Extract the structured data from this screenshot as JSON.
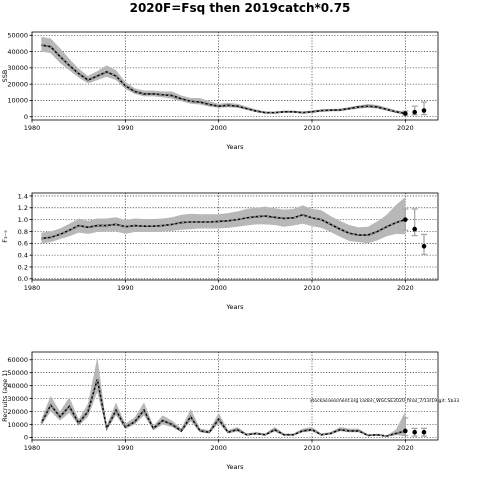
{
  "figure": {
    "title": "2020F=Fsq then 2019catch*0.75",
    "note": "stockassessment.org  codon_WGCSE2020_final_7/13/19  git: 5b33"
  },
  "chart_data": [
    {
      "type": "line",
      "name": "ssb",
      "title": "",
      "xlabel": "Years",
      "ylabel": "SSB",
      "xlim": [
        1980,
        2023.5
      ],
      "ylim": [
        -2000,
        52000
      ],
      "xticks": [
        1980,
        1990,
        2000,
        2010,
        2020
      ],
      "yticks": [
        0,
        10000,
        20000,
        30000,
        40000,
        50000
      ],
      "ytick_labels": [
        "0",
        "10000",
        "20000",
        "30000",
        "40000",
        "50000"
      ],
      "grid": true,
      "x": [
        1981,
        1982,
        1983,
        1984,
        1985,
        1986,
        1987,
        1988,
        1989,
        1990,
        1991,
        1992,
        1993,
        1994,
        1995,
        1996,
        1997,
        1998,
        1999,
        2000,
        2001,
        2002,
        2003,
        2004,
        2005,
        2006,
        2007,
        2008,
        2009,
        2010,
        2011,
        2012,
        2013,
        2014,
        2015,
        2016,
        2017,
        2018,
        2019,
        2020
      ],
      "estimate": [
        44000,
        43000,
        37000,
        31500,
        26500,
        22500,
        25000,
        27500,
        25000,
        19000,
        15500,
        14000,
        14000,
        13500,
        13000,
        11000,
        9500,
        9000,
        7500,
        6500,
        7000,
        6500,
        5000,
        3500,
        2500,
        2500,
        3000,
        3000,
        2500,
        3000,
        3800,
        4000,
        4200,
        5000,
        6000,
        6500,
        6000,
        4500,
        3000,
        2000
      ],
      "lower": [
        40000,
        39000,
        33000,
        28500,
        24000,
        20500,
        22500,
        24500,
        22500,
        17000,
        14000,
        12500,
        12500,
        12000,
        11000,
        9500,
        8000,
        7500,
        6200,
        5500,
        5800,
        5500,
        4200,
        2800,
        2000,
        2000,
        2400,
        2400,
        2000,
        2400,
        3100,
        3300,
        3400,
        4200,
        5000,
        5500,
        5000,
        3700,
        2300,
        1200
      ],
      "upper": [
        49000,
        48000,
        42000,
        35500,
        29500,
        25000,
        28000,
        31500,
        28500,
        21500,
        17500,
        16000,
        16000,
        15500,
        15500,
        13000,
        11500,
        11500,
        9500,
        8000,
        8500,
        8000,
        6200,
        4500,
        3200,
        3100,
        3800,
        3800,
        3200,
        3800,
        4500,
        4800,
        5000,
        6000,
        7000,
        7800,
        7200,
        5600,
        4000,
        3000
      ],
      "forecast": {
        "x": [
          2020,
          2021,
          2022
        ],
        "median": [
          2000,
          2800,
          3800
        ],
        "lower": [
          1000,
          1200,
          1300
        ],
        "upper": [
          3500,
          6500,
          9000
        ]
      }
    },
    {
      "type": "line",
      "name": "fbar",
      "title": "",
      "xlabel": "Years",
      "ylabel": "F₃₋₅",
      "xlim": [
        1980,
        2023.5
      ],
      "ylim": [
        -0.02,
        1.45
      ],
      "xticks": [
        1980,
        1990,
        2000,
        2010,
        2020
      ],
      "yticks": [
        0.0,
        0.2,
        0.4,
        0.6,
        0.8,
        1.0,
        1.2,
        1.4
      ],
      "ytick_labels": [
        "0.0",
        "0.2",
        "0.4",
        "0.6",
        "0.8",
        "1.0",
        "1.2",
        "1.4"
      ],
      "grid": true,
      "x": [
        1981,
        1982,
        1983,
        1984,
        1985,
        1986,
        1987,
        1988,
        1989,
        1990,
        1991,
        1992,
        1993,
        1994,
        1995,
        1996,
        1997,
        1998,
        1999,
        2000,
        2001,
        2002,
        2003,
        2004,
        2005,
        2006,
        2007,
        2008,
        2009,
        2010,
        2011,
        2012,
        2013,
        2014,
        2015,
        2016,
        2017,
        2018,
        2019,
        2020
      ],
      "estimate": [
        0.68,
        0.7,
        0.75,
        0.82,
        0.9,
        0.87,
        0.9,
        0.9,
        0.92,
        0.88,
        0.9,
        0.89,
        0.89,
        0.9,
        0.92,
        0.95,
        0.96,
        0.96,
        0.96,
        0.97,
        0.98,
        1.0,
        1.03,
        1.05,
        1.06,
        1.04,
        1.02,
        1.03,
        1.08,
        1.03,
        1.0,
        0.92,
        0.84,
        0.77,
        0.74,
        0.74,
        0.8,
        0.88,
        0.95,
        1.0
      ],
      "lower": [
        0.6,
        0.62,
        0.67,
        0.72,
        0.78,
        0.76,
        0.79,
        0.8,
        0.8,
        0.76,
        0.79,
        0.79,
        0.79,
        0.8,
        0.81,
        0.83,
        0.84,
        0.85,
        0.85,
        0.85,
        0.86,
        0.88,
        0.9,
        0.92,
        0.92,
        0.91,
        0.88,
        0.9,
        0.93,
        0.89,
        0.86,
        0.79,
        0.71,
        0.64,
        0.62,
        0.6,
        0.65,
        0.72,
        0.76,
        0.75
      ],
      "upper": [
        0.78,
        0.8,
        0.85,
        0.93,
        1.02,
        0.98,
        1.02,
        1.02,
        1.04,
        0.99,
        1.02,
        1.01,
        1.01,
        1.02,
        1.04,
        1.08,
        1.1,
        1.09,
        1.09,
        1.09,
        1.11,
        1.14,
        1.18,
        1.2,
        1.22,
        1.19,
        1.17,
        1.18,
        1.24,
        1.18,
        1.16,
        1.06,
        0.98,
        0.91,
        0.87,
        0.88,
        0.97,
        1.08,
        1.25,
        1.38
      ],
      "forecast": {
        "x": [
          2020,
          2021,
          2022
        ],
        "median": [
          1.0,
          0.84,
          0.55
        ],
        "lower": [
          0.82,
          0.73,
          0.41
        ],
        "upper": [
          1.18,
          1.18,
          0.75
        ]
      }
    },
    {
      "type": "line",
      "name": "recruitment",
      "title": "",
      "xlabel": "Years",
      "ylabel": "Recruits (age 1)",
      "xlim": [
        1980,
        2023.5
      ],
      "ylim": [
        -2000,
        66000
      ],
      "xticks": [
        1980,
        1990,
        2000,
        2010,
        2020
      ],
      "yticks": [
        0,
        10000,
        20000,
        30000,
        40000,
        50000,
        60000
      ],
      "ytick_labels": [
        "0",
        "10000",
        "20000",
        "30000",
        "40000",
        "50000",
        "60000"
      ],
      "grid": true,
      "x": [
        1981,
        1982,
        1983,
        1984,
        1985,
        1986,
        1987,
        1988,
        1989,
        1990,
        1991,
        1992,
        1993,
        1994,
        1995,
        1996,
        1997,
        1998,
        1999,
        2000,
        2001,
        2002,
        2003,
        2004,
        2005,
        2006,
        2007,
        2008,
        2009,
        2010,
        2011,
        2012,
        2013,
        2014,
        2015,
        2016,
        2017,
        2018,
        2019,
        2020
      ],
      "estimate": [
        11000,
        25000,
        16000,
        24000,
        11000,
        20000,
        45000,
        7000,
        21000,
        8000,
        12000,
        21000,
        7000,
        13000,
        10000,
        5000,
        16000,
        5000,
        4000,
        14000,
        4000,
        6000,
        2000,
        3000,
        2000,
        6000,
        2000,
        2000,
        5000,
        6000,
        2000,
        3000,
        6000,
        5000,
        5000,
        1500,
        2000,
        1000,
        3000,
        5000
      ],
      "lower": [
        9000,
        20000,
        13000,
        19000,
        9000,
        16000,
        35000,
        5500,
        17000,
        6500,
        10000,
        17000,
        5500,
        10000,
        8000,
        4000,
        12500,
        4000,
        3000,
        11000,
        3000,
        4500,
        1500,
        2200,
        1500,
        4500,
        1500,
        1500,
        4000,
        4800,
        1500,
        2300,
        4800,
        4000,
        4000,
        1000,
        1400,
        600,
        1800,
        1000
      ],
      "upper": [
        14000,
        32000,
        20000,
        31000,
        14000,
        26000,
        62000,
        9000,
        27000,
        10500,
        15500,
        27000,
        9000,
        17000,
        13000,
        7000,
        22000,
        7000,
        5500,
        19000,
        5500,
        8000,
        3000,
        4200,
        3000,
        8000,
        3000,
        3000,
        6800,
        8000,
        3000,
        4200,
        8000,
        6800,
        6800,
        2300,
        2800,
        1600,
        6000,
        20000
      ],
      "forecast": {
        "x": [
          2020,
          2021,
          2022
        ],
        "median": [
          5000,
          4000,
          4000
        ],
        "lower": [
          1500,
          1000,
          1000
        ],
        "upper": [
          15000,
          7000,
          7000
        ]
      }
    }
  ]
}
